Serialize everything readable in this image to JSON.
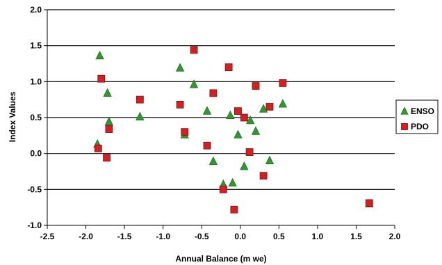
{
  "chart_data": {
    "type": "scatter",
    "xlabel": "Annual Balance (m we)",
    "ylabel": "Index Values",
    "xlim": [
      -2.5,
      2.0
    ],
    "ylim": [
      -1.0,
      2.0
    ],
    "x_ticks": [
      "-2.5",
      "-2.0",
      "-1.5",
      "-1.0",
      "-0.5",
      "0.0",
      "0.5",
      "1.0",
      "1.5",
      "2.0"
    ],
    "y_ticks": [
      "-1.0",
      "-0.5",
      "0.0",
      "0.5",
      "1.0",
      "1.5",
      "2.0"
    ],
    "grid": "horizontal",
    "legend_position": "right",
    "series": [
      {
        "name": "ENSO",
        "marker": "triangle",
        "color": "#2e9a2e",
        "points": [
          [
            -1.82,
            1.36
          ],
          [
            -1.85,
            0.13
          ],
          [
            -1.72,
            0.84
          ],
          [
            -1.7,
            0.44
          ],
          [
            -1.3,
            0.51
          ],
          [
            -0.78,
            1.19
          ],
          [
            -0.72,
            0.26
          ],
          [
            -0.6,
            0.96
          ],
          [
            -0.43,
            0.59
          ],
          [
            -0.35,
            -0.11
          ],
          [
            -0.22,
            -0.43
          ],
          [
            -0.1,
            -0.41
          ],
          [
            -0.13,
            0.53
          ],
          [
            -0.03,
            0.26
          ],
          [
            0.05,
            -0.18
          ],
          [
            0.13,
            0.46
          ],
          [
            0.2,
            0.31
          ],
          [
            0.3,
            0.62
          ],
          [
            0.38,
            -0.1
          ],
          [
            0.55,
            0.69
          ],
          [
            1.67,
            -0.7
          ]
        ]
      },
      {
        "name": "PDO",
        "marker": "square",
        "color": "#d42020",
        "points": [
          [
            -1.8,
            1.04
          ],
          [
            -1.84,
            0.07
          ],
          [
            -1.73,
            -0.06
          ],
          [
            -1.7,
            0.34
          ],
          [
            -1.3,
            0.75
          ],
          [
            -0.78,
            0.68
          ],
          [
            -0.72,
            0.3
          ],
          [
            -0.6,
            1.44
          ],
          [
            -0.43,
            0.11
          ],
          [
            -0.35,
            0.84
          ],
          [
            -0.22,
            -0.5
          ],
          [
            -0.15,
            1.2
          ],
          [
            -0.08,
            -0.78
          ],
          [
            -0.03,
            0.59
          ],
          [
            0.05,
            0.5
          ],
          [
            0.12,
            0.02
          ],
          [
            0.2,
            0.94
          ],
          [
            0.3,
            -0.31
          ],
          [
            0.38,
            0.65
          ],
          [
            0.55,
            0.98
          ],
          [
            1.67,
            -0.69
          ]
        ]
      }
    ]
  }
}
